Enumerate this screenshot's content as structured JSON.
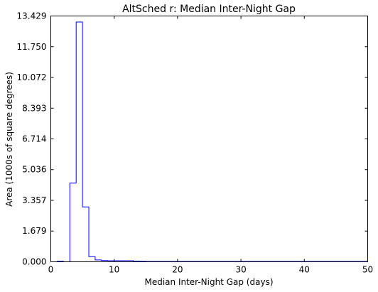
{
  "chart_data": {
    "type": "line",
    "title": "AltSched  r: Median Inter-Night Gap",
    "xlabel": "Median Inter-Night Gap (days)",
    "ylabel": "Area (1000s of square degrees)",
    "xlim": [
      0,
      50
    ],
    "ylim": [
      0,
      13.429
    ],
    "xticks": [
      0,
      10,
      20,
      30,
      40,
      50
    ],
    "xtick_labels": [
      "0",
      "10",
      "20",
      "30",
      "40",
      "50"
    ],
    "yticks": [
      0.0,
      1.679,
      3.357,
      5.036,
      6.714,
      8.393,
      10.072,
      11.75,
      13.429
    ],
    "ytick_labels": [
      "0.000",
      "1.679",
      "3.357",
      "5.036",
      "6.714",
      "8.393",
      "10.072",
      "11.750",
      "13.429"
    ],
    "grid": false,
    "legend": "none",
    "step": "post",
    "series": [
      {
        "color": "#0000ff",
        "x": [
          0,
          1,
          2,
          3,
          4,
          5,
          6,
          7,
          8,
          9,
          10,
          11,
          12,
          13,
          14,
          15,
          16,
          17,
          18,
          19,
          20,
          25,
          30,
          35,
          40,
          45,
          50
        ],
        "values": [
          0.0,
          0.03,
          0.0,
          4.3,
          13.1,
          3.0,
          0.28,
          0.1,
          0.07,
          0.06,
          0.06,
          0.06,
          0.06,
          0.04,
          0.03,
          0.02,
          0.02,
          0.02,
          0.02,
          0.02,
          0.02,
          0.02,
          0.02,
          0.02,
          0.02,
          0.02,
          0.02
        ]
      }
    ]
  }
}
